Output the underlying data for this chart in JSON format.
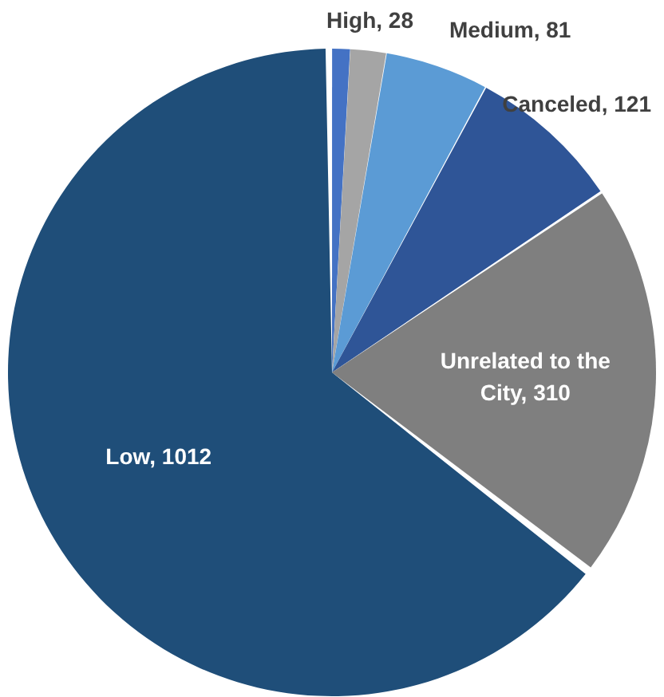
{
  "chart_data": {
    "type": "pie",
    "categories": [
      null,
      "High",
      "Medium",
      "Canceled",
      "Unrelated to the City",
      "Low"
    ],
    "values": [
      14,
      28,
      81,
      121,
      310,
      1012
    ],
    "value_labels": [
      null,
      "28",
      "81",
      "121",
      "310",
      "1012"
    ],
    "colors": [
      "#4472c4",
      "#a5a5a5",
      "#5b9bd5",
      "#2f5597",
      "#7f7f7f",
      "#1f4e79"
    ],
    "legend": false
  }
}
